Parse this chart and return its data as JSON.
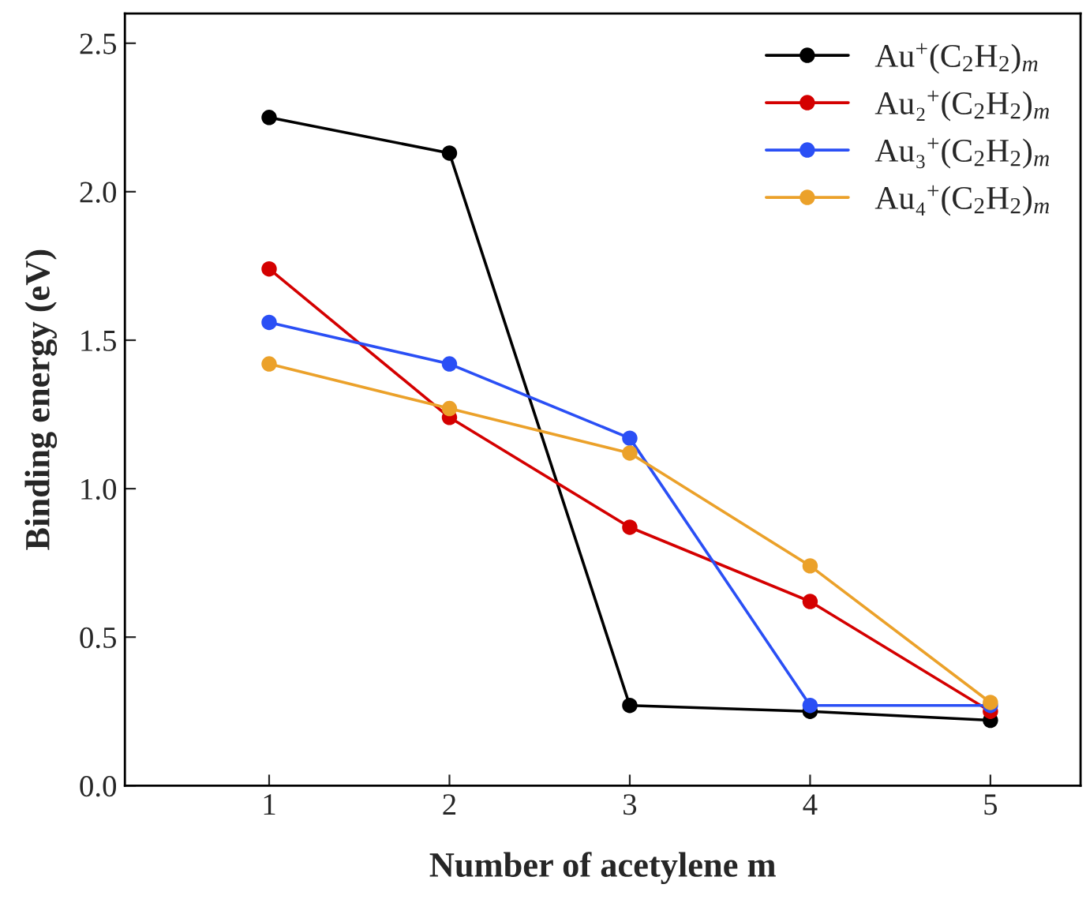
{
  "chart_data": {
    "type": "line",
    "xlabel": "Number of acetylene m",
    "ylabel": "Binding energy (eV)",
    "x": [
      1,
      2,
      3,
      4,
      5
    ],
    "xlim": [
      0.2,
      5.5
    ],
    "xticks": [
      1,
      2,
      3,
      4,
      5
    ],
    "ylim": [
      0,
      2.6
    ],
    "yticks": [
      {
        "value": 0,
        "label": "0.0"
      },
      0.5,
      {
        "value": 1,
        "label": "1.0"
      },
      1.5,
      {
        "value": 2,
        "label": "2.0"
      },
      2.5
    ],
    "marker": "circle",
    "line_style": "solid",
    "grid": false,
    "legend": "top right",
    "series": [
      {
        "name": "Au$^{+}$(C$_{2}$H$_{2}$)$_{m}$",
        "color": "#000000",
        "values": [
          2.25,
          2.13,
          0.27,
          0.25,
          0.22
        ]
      },
      {
        "name": "Au₂$^{+}$(C$_{2}$H$_{2}$)$_{m}$",
        "color": "#d40000",
        "values": [
          1.74,
          1.24,
          0.87,
          0.62,
          0.25
        ]
      },
      {
        "name": "Au₃$^{+}$(C$_{2}$H$_{2}$)$_{m}$",
        "color": "#2a4ff5",
        "values": [
          1.56,
          1.42,
          1.17,
          0.27,
          0.27
        ]
      },
      {
        "name": "Au₄$^{+}$(C$_{2}$H$_{2}$)$_{m}$",
        "color": "#eba12a",
        "values": [
          1.42,
          1.27,
          1.12,
          0.74,
          0.28
        ]
      }
    ]
  }
}
